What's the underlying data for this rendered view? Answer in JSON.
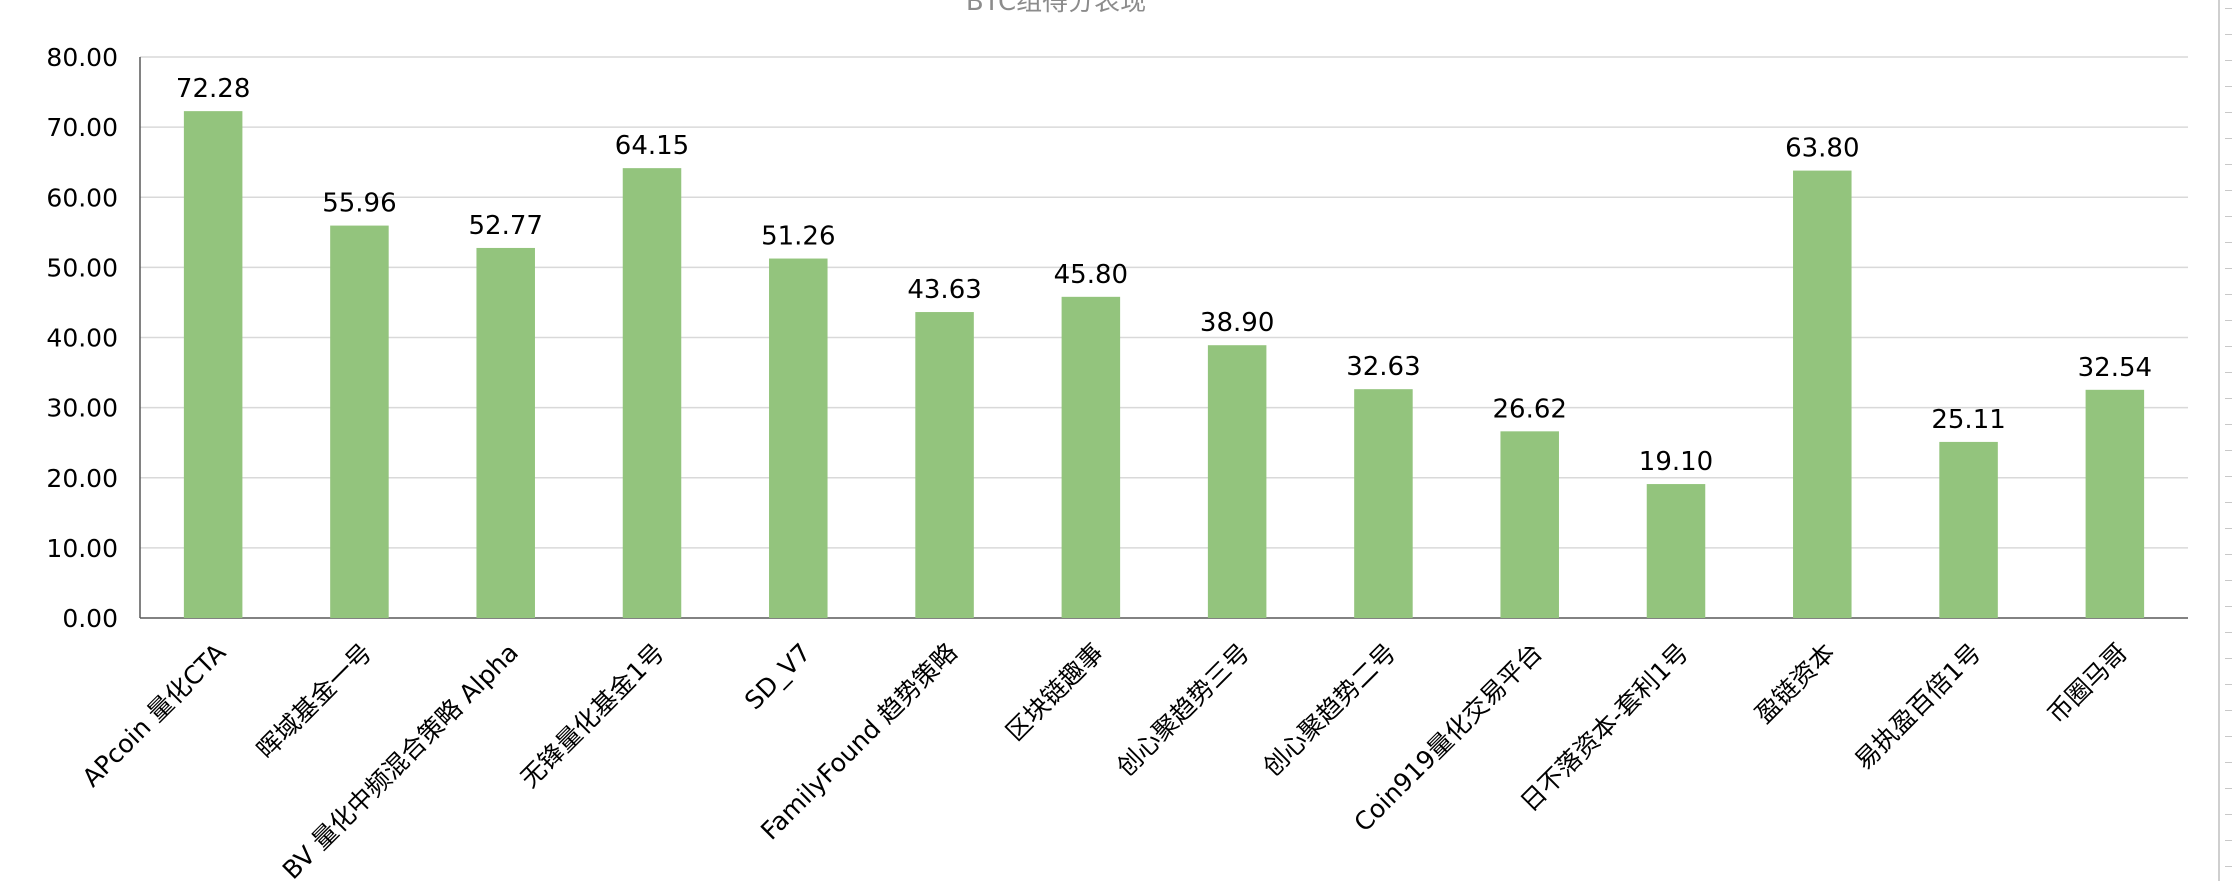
{
  "colors": {
    "bar": "#93c47d",
    "grid": "#d9d9d9",
    "axis": "#595959",
    "title": "#8c8c8c",
    "text": "#000000"
  },
  "chart_data": {
    "type": "bar",
    "title": "BTC组得分表现",
    "xlabel": "",
    "ylabel": "",
    "ylim": [
      0,
      80
    ],
    "yticks": [
      "0.00",
      "10.00",
      "20.00",
      "30.00",
      "40.00",
      "50.00",
      "60.00",
      "70.00",
      "80.00"
    ],
    "grid": true,
    "legend": "none",
    "categories": [
      "APcoin 量化CTA",
      "晖域基金一号",
      "BV 量化中频混合策略 Alpha",
      "无锋量化基金1号",
      "SD_V7",
      "FamilyFound 趋势策略",
      "区块链趣事",
      "创心聚趋势三号",
      "创心聚趋势二号",
      "Coin919量化交易平台",
      "日不落资本-套利1号",
      "盈链资本",
      "易执盈百倍1号",
      "币圈马哥"
    ],
    "values": [
      72.28,
      55.96,
      52.77,
      64.15,
      51.26,
      43.63,
      45.8,
      38.9,
      32.63,
      26.62,
      19.1,
      63.8,
      25.11,
      32.54
    ],
    "data_labels": [
      "72.28",
      "55.96",
      "52.77",
      "64.15",
      "51.26",
      "43.63",
      "45.80",
      "38.90",
      "32.63",
      "26.62",
      "19.10",
      "63.80",
      "25.11",
      "32.54"
    ]
  }
}
